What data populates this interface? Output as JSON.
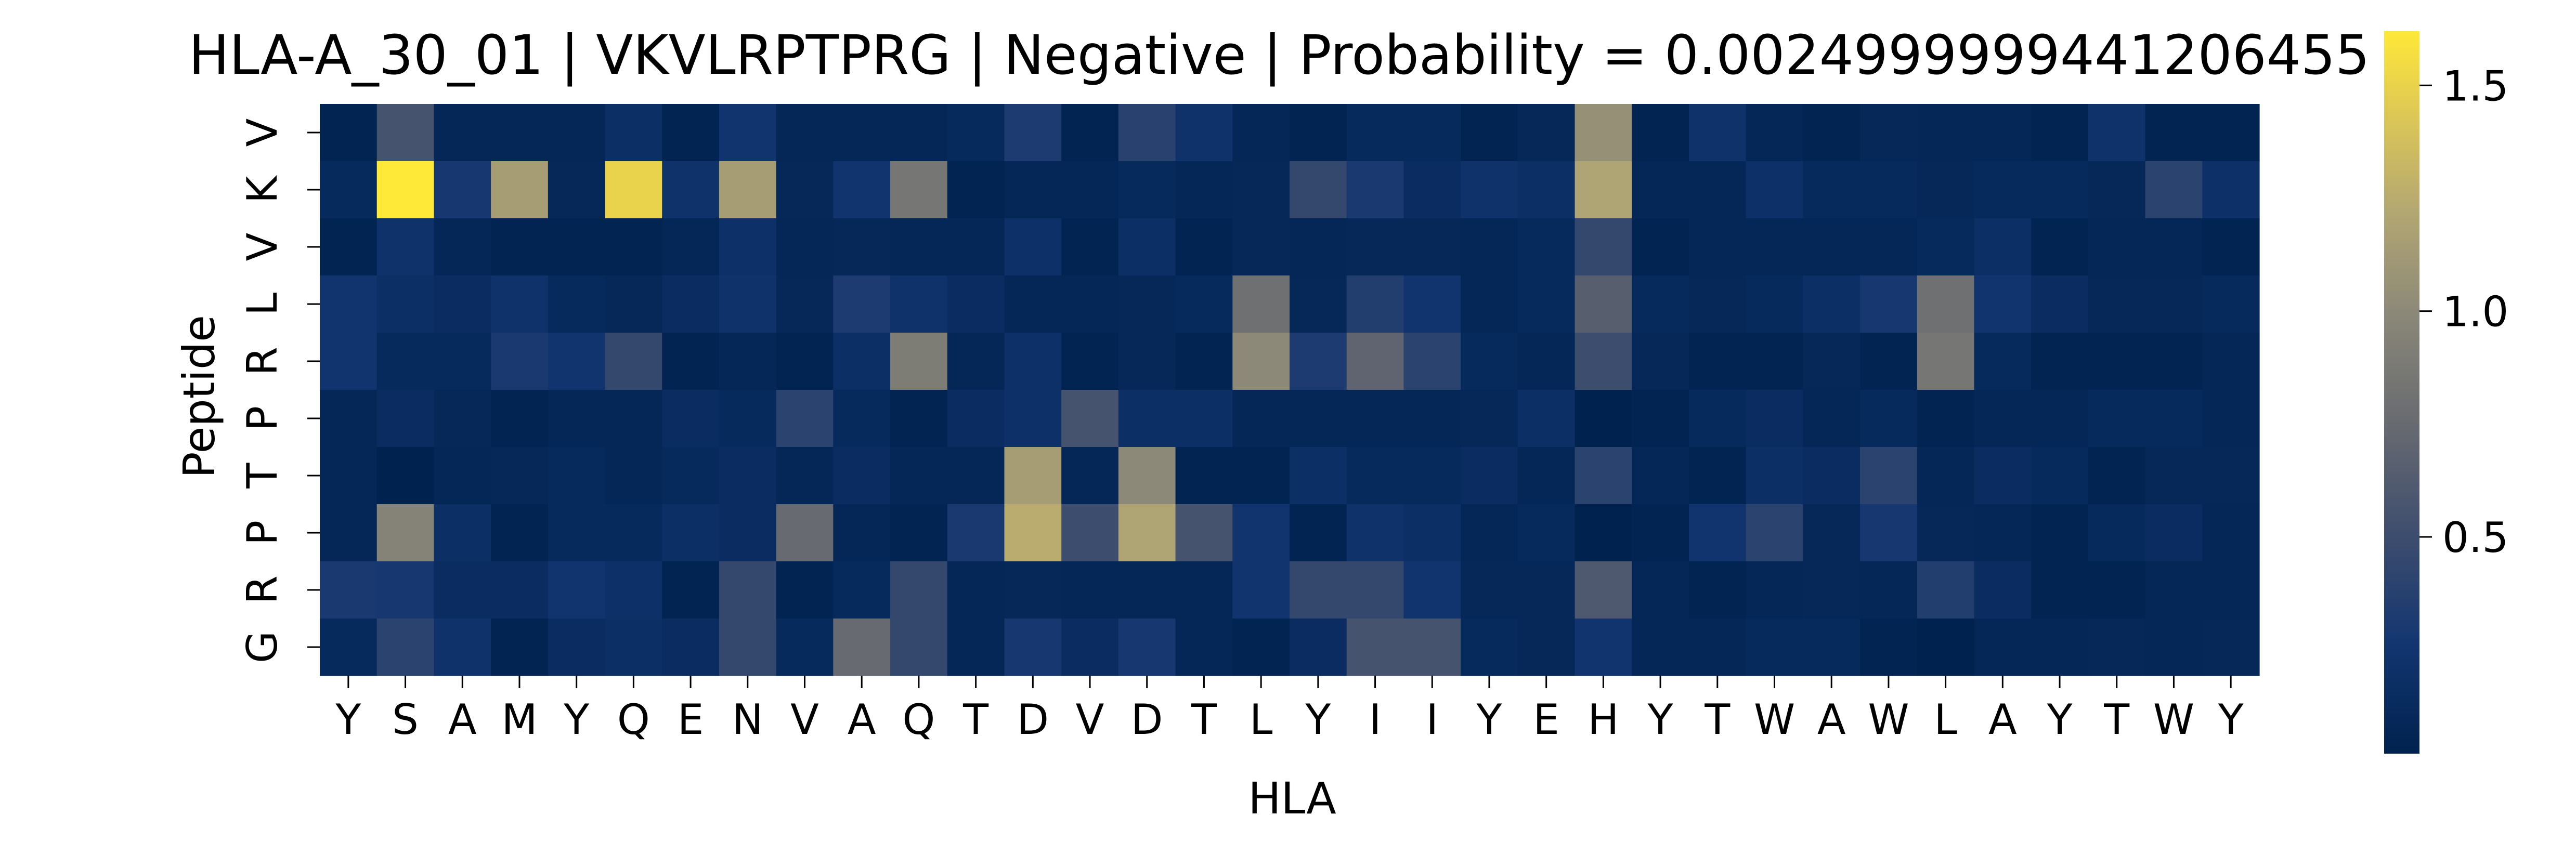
{
  "chart_data": {
    "type": "heatmap",
    "title": "HLA-A_30_01 | VKVLRPTPRG | Negative | Probability = 0.0024999999441206455",
    "xlabel": "HLA",
    "ylabel": "Peptide",
    "x_categories": [
      "Y",
      "S",
      "A",
      "M",
      "Y",
      "Q",
      "E",
      "N",
      "V",
      "A",
      "Q",
      "T",
      "D",
      "V",
      "D",
      "T",
      "L",
      "Y",
      "I",
      "I",
      "Y",
      "E",
      "H",
      "Y",
      "T",
      "W",
      "A",
      "W",
      "L",
      "A",
      "Y",
      "T",
      "W",
      "Y"
    ],
    "y_categories": [
      "V",
      "K",
      "V",
      "L",
      "R",
      "P",
      "T",
      "P",
      "R",
      "G"
    ],
    "colormap": "cividis",
    "vmin": 0.02,
    "vmax": 1.62,
    "colorbar_ticks": [
      0.5,
      1.0,
      1.5
    ],
    "colorbar_tick_labels": [
      "0.5",
      "1.0",
      "1.5"
    ],
    "values": [
      [
        0.05,
        0.55,
        0.08,
        0.08,
        0.08,
        0.18,
        0.05,
        0.25,
        0.08,
        0.08,
        0.08,
        0.12,
        0.32,
        0.05,
        0.38,
        0.22,
        0.08,
        0.05,
        0.12,
        0.12,
        0.05,
        0.1,
        1.05,
        0.05,
        0.22,
        0.08,
        0.05,
        0.1,
        0.08,
        0.08,
        0.05,
        0.22,
        0.05,
        0.05
      ],
      [
        0.12,
        1.62,
        0.28,
        1.15,
        0.1,
        1.5,
        0.22,
        1.15,
        0.1,
        0.25,
        0.85,
        0.05,
        0.08,
        0.08,
        0.12,
        0.08,
        0.1,
        0.45,
        0.3,
        0.15,
        0.22,
        0.18,
        1.2,
        0.08,
        0.08,
        0.2,
        0.12,
        0.12,
        0.1,
        0.12,
        0.12,
        0.1,
        0.4,
        0.2
      ],
      [
        0.05,
        0.22,
        0.08,
        0.05,
        0.05,
        0.05,
        0.08,
        0.2,
        0.08,
        0.1,
        0.08,
        0.08,
        0.2,
        0.05,
        0.18,
        0.05,
        0.1,
        0.08,
        0.1,
        0.1,
        0.08,
        0.12,
        0.45,
        0.05,
        0.08,
        0.08,
        0.08,
        0.08,
        0.12,
        0.18,
        0.05,
        0.08,
        0.08,
        0.05
      ],
      [
        0.25,
        0.18,
        0.15,
        0.22,
        0.12,
        0.1,
        0.15,
        0.22,
        0.1,
        0.32,
        0.22,
        0.15,
        0.08,
        0.08,
        0.1,
        0.12,
        0.8,
        0.1,
        0.35,
        0.25,
        0.08,
        0.12,
        0.65,
        0.12,
        0.1,
        0.12,
        0.18,
        0.28,
        0.8,
        0.25,
        0.15,
        0.1,
        0.1,
        0.12
      ],
      [
        0.25,
        0.12,
        0.12,
        0.3,
        0.25,
        0.45,
        0.05,
        0.08,
        0.05,
        0.18,
        0.9,
        0.08,
        0.2,
        0.05,
        0.1,
        0.05,
        1.0,
        0.32,
        0.7,
        0.4,
        0.12,
        0.08,
        0.5,
        0.1,
        0.05,
        0.05,
        0.1,
        0.05,
        0.85,
        0.12,
        0.05,
        0.05,
        0.05,
        0.08
      ],
      [
        0.08,
        0.15,
        0.1,
        0.05,
        0.08,
        0.08,
        0.15,
        0.12,
        0.4,
        0.12,
        0.05,
        0.15,
        0.2,
        0.55,
        0.18,
        0.18,
        0.08,
        0.08,
        0.08,
        0.08,
        0.1,
        0.18,
        0.02,
        0.05,
        0.12,
        0.15,
        0.08,
        0.12,
        0.05,
        0.08,
        0.08,
        0.12,
        0.12,
        0.08
      ],
      [
        0.08,
        0.02,
        0.08,
        0.1,
        0.12,
        0.08,
        0.12,
        0.15,
        0.08,
        0.15,
        0.08,
        0.08,
        1.15,
        0.08,
        1.0,
        0.05,
        0.05,
        0.18,
        0.12,
        0.12,
        0.15,
        0.08,
        0.4,
        0.08,
        0.05,
        0.18,
        0.15,
        0.4,
        0.08,
        0.15,
        0.12,
        0.05,
        0.1,
        0.1
      ],
      [
        0.08,
        0.95,
        0.18,
        0.05,
        0.12,
        0.12,
        0.18,
        0.15,
        0.75,
        0.08,
        0.05,
        0.3,
        1.25,
        0.5,
        1.2,
        0.55,
        0.25,
        0.05,
        0.22,
        0.18,
        0.08,
        0.12,
        0.02,
        0.05,
        0.25,
        0.4,
        0.1,
        0.28,
        0.1,
        0.08,
        0.05,
        0.12,
        0.15,
        0.08
      ],
      [
        0.3,
        0.28,
        0.15,
        0.15,
        0.25,
        0.2,
        0.05,
        0.45,
        0.05,
        0.12,
        0.45,
        0.08,
        0.1,
        0.08,
        0.08,
        0.08,
        0.25,
        0.45,
        0.45,
        0.25,
        0.1,
        0.1,
        0.6,
        0.08,
        0.05,
        0.08,
        0.1,
        0.08,
        0.35,
        0.15,
        0.05,
        0.05,
        0.08,
        0.08
      ],
      [
        0.12,
        0.4,
        0.22,
        0.05,
        0.15,
        0.18,
        0.15,
        0.45,
        0.12,
        0.75,
        0.45,
        0.08,
        0.28,
        0.15,
        0.28,
        0.08,
        0.05,
        0.15,
        0.55,
        0.55,
        0.12,
        0.1,
        0.25,
        0.08,
        0.08,
        0.12,
        0.12,
        0.05,
        0.02,
        0.08,
        0.08,
        0.1,
        0.08,
        0.1
      ]
    ]
  }
}
